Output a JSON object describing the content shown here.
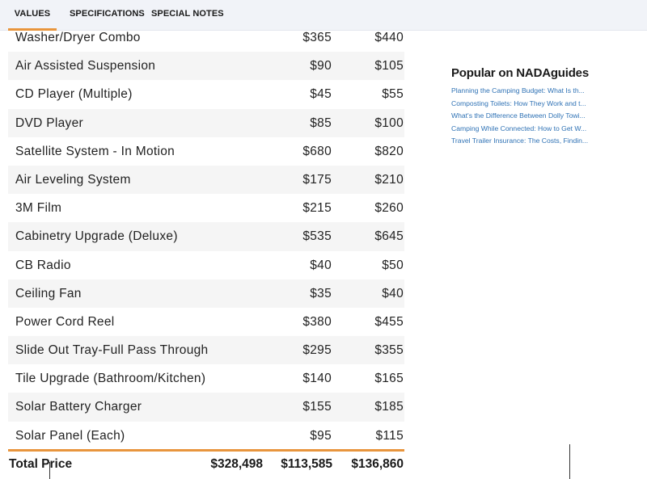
{
  "tabs": [
    {
      "label": "VALUES",
      "active": true
    },
    {
      "label": "SPECIFICATIONS",
      "active": false
    },
    {
      "label": "SPECIAL NOTES",
      "active": false
    }
  ],
  "options_table": {
    "rows": [
      {
        "name": "Washer/Dryer Combo",
        "low": "$365",
        "high": "$440"
      },
      {
        "name": "Air Assisted Suspension",
        "low": "$90",
        "high": "$105"
      },
      {
        "name": "CD Player (Multiple)",
        "low": "$45",
        "high": "$55"
      },
      {
        "name": "DVD Player",
        "low": "$85",
        "high": "$100"
      },
      {
        "name": "Satellite System - In Motion",
        "low": "$680",
        "high": "$820"
      },
      {
        "name": "Air Leveling System",
        "low": "$175",
        "high": "$210"
      },
      {
        "name": "3M Film",
        "low": "$215",
        "high": "$260"
      },
      {
        "name": "Cabinetry Upgrade (Deluxe)",
        "low": "$535",
        "high": "$645"
      },
      {
        "name": "CB Radio",
        "low": "$40",
        "high": "$50"
      },
      {
        "name": "Ceiling Fan",
        "low": "$35",
        "high": "$40"
      },
      {
        "name": "Power Cord Reel",
        "low": "$380",
        "high": "$455"
      },
      {
        "name": "Slide Out Tray-Full Pass Through",
        "low": "$295",
        "high": "$355"
      },
      {
        "name": "Tile Upgrade (Bathroom/Kitchen)",
        "low": "$140",
        "high": "$165"
      },
      {
        "name": "Solar Battery Charger",
        "low": "$155",
        "high": "$185"
      },
      {
        "name": "Solar Panel (Each)",
        "low": "$95",
        "high": "$115"
      }
    ]
  },
  "total": {
    "label": "Total Price",
    "msrp": "$328,498",
    "low": "$113,585",
    "high": "$136,860"
  },
  "popular": {
    "title": "Popular on NADAguides",
    "links": [
      "Planning the Camping Budget: What Is th...",
      "Composting Toilets: How They Work and t...",
      "What's the Difference Between Dolly Towi...",
      "Camping While Connected: How to Get W...",
      "Travel Trailer Insurance: The Costs, Findin..."
    ]
  },
  "colors": {
    "accent": "#e8953d",
    "link": "#2f72b5",
    "tab_bar_bg": "#f1f3f8",
    "row_alt_bg": "#f5f5f5"
  }
}
